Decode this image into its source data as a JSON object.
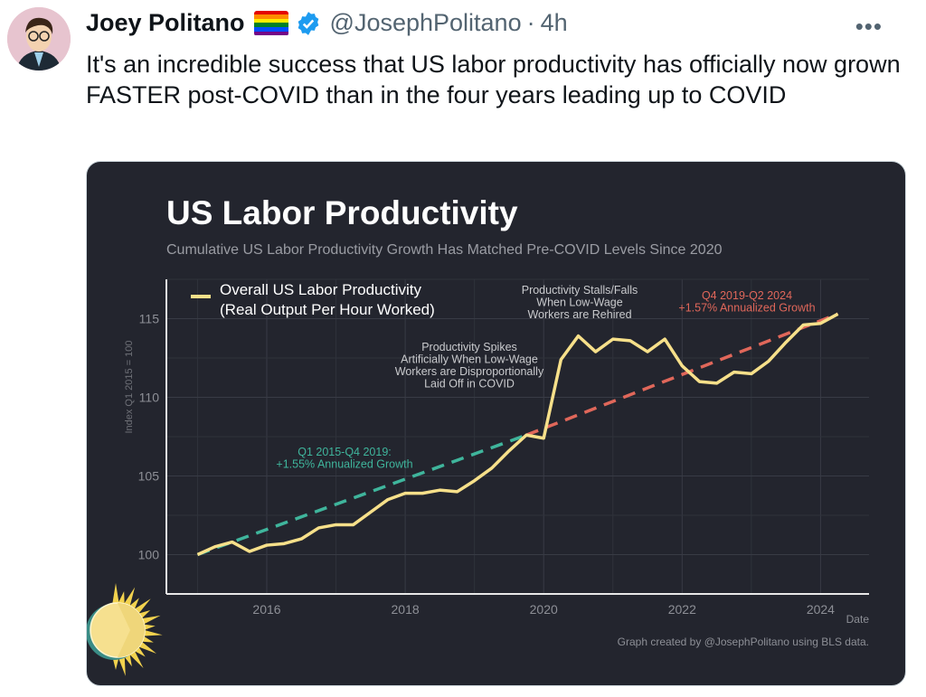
{
  "tweet": {
    "author_name": "Joey Politano",
    "handle": "@JosephPolitano",
    "separator": "·",
    "time": "4h",
    "more_icon": "more-horizontal-icon",
    "verified_color": "#1d9bf0",
    "text": "It's an incredible success that US labor productivity has officially now grown FASTER post-COVID than in the four years leading up to COVID"
  },
  "chart_data": {
    "type": "line",
    "title": "US Labor Productivity",
    "subtitle": "Cumulative US Labor Productivity Growth Has Matched Pre-COVID Levels Since 2020",
    "xlabel": "Date",
    "ylabel": "Index Q1 2015 = 100",
    "xlim": [
      2014.55,
      2024.7
    ],
    "ylim": [
      97.5,
      117.5
    ],
    "x_ticks": [
      "2016",
      "2018",
      "2020",
      "2022",
      "2024"
    ],
    "y_ticks": [
      "100",
      "105",
      "110",
      "115"
    ],
    "grid": true,
    "legend_position": "top-left",
    "background": "#23252e",
    "series": [
      {
        "name": "Overall US Labor Productivity (Real Output Per Hour Worked)",
        "legend_lines": [
          "Overall US Labor Productivity",
          "(Real Output Per Hour Worked)"
        ],
        "color": "#f7e08a",
        "x": [
          2015.0,
          2015.25,
          2015.5,
          2015.75,
          2016.0,
          2016.25,
          2016.5,
          2016.75,
          2017.0,
          2017.25,
          2017.5,
          2017.75,
          2018.0,
          2018.25,
          2018.5,
          2018.75,
          2019.0,
          2019.25,
          2019.5,
          2019.75,
          2020.0,
          2020.25,
          2020.5,
          2020.75,
          2021.0,
          2021.25,
          2021.5,
          2021.75,
          2022.0,
          2022.25,
          2022.5,
          2022.75,
          2023.0,
          2023.25,
          2023.5,
          2023.75,
          2024.0,
          2024.25
        ],
        "values": [
          100.0,
          100.5,
          100.8,
          100.2,
          100.6,
          100.7,
          101.0,
          101.7,
          101.9,
          101.9,
          102.7,
          103.5,
          103.9,
          103.9,
          104.1,
          104.0,
          104.7,
          105.5,
          106.6,
          107.6,
          107.4,
          112.4,
          113.9,
          112.9,
          113.7,
          113.6,
          112.9,
          113.7,
          112.0,
          111.0,
          110.9,
          111.6,
          111.5,
          112.3,
          113.5,
          114.6,
          114.7,
          115.3
        ]
      }
    ],
    "trend_lines": [
      {
        "from": [
          2015.0,
          100.0
        ],
        "to": [
          2019.75,
          107.6
        ],
        "color": "#3fb59c",
        "style": "dashed"
      },
      {
        "from": [
          2019.75,
          107.6
        ],
        "to": [
          2024.25,
          115.3
        ],
        "color": "#e0675a",
        "style": "dashed"
      }
    ],
    "annotations": [
      {
        "lines": [
          "Q1 2015-Q4 2019:",
          "+1.55% Annualized Growth"
        ],
        "color": "#3fb59c"
      },
      {
        "lines": [
          "Q4 2019-Q2 2024",
          "+1.57% Annualized Growth"
        ],
        "color": "#e0675a"
      },
      {
        "lines": [
          "Productivity Spikes",
          "Artificially When Low-Wage",
          "Workers are Disproportionally",
          "Laid Off in COVID"
        ],
        "color": "#c9cacd"
      },
      {
        "lines": [
          "Productivity Stalls/Falls",
          "When Low-Wage",
          "Workers are Rehired"
        ],
        "color": "#c9cacd"
      }
    ],
    "credit": "Graph created by @JosephPolitano using BLS data.",
    "logo": "sun-logo"
  }
}
